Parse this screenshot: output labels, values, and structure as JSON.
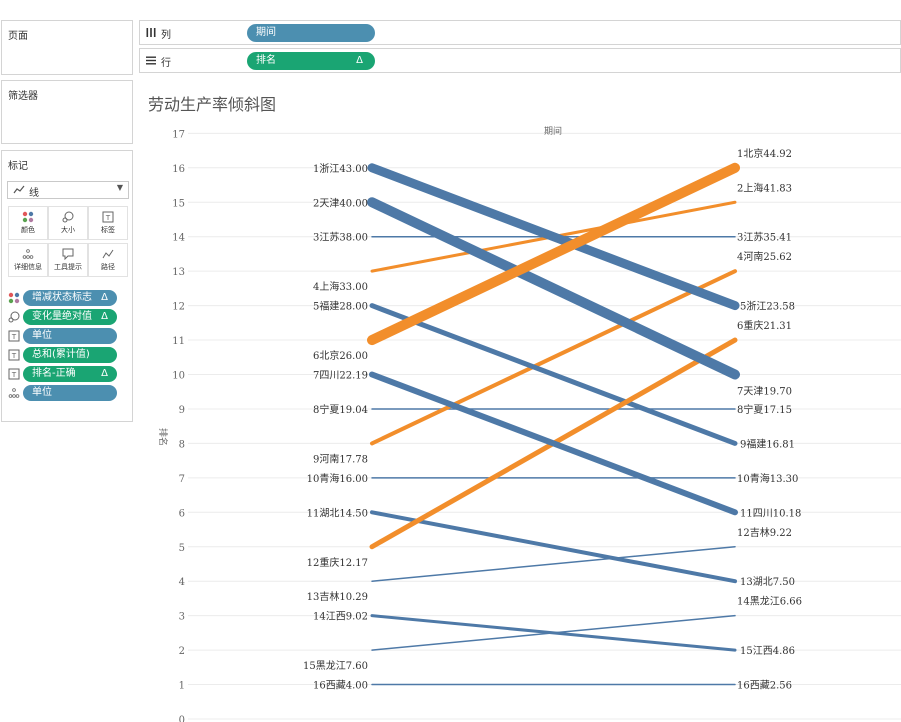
{
  "left_panel": {
    "pages_title": "页面",
    "filters_title": "筛选器",
    "marks_title": "标记",
    "mark_type": "线",
    "mark_buttons": [
      {
        "label": "颜色",
        "icon": "color-icon"
      },
      {
        "label": "大小",
        "icon": "size-icon"
      },
      {
        "label": "标签",
        "icon": "label-icon"
      },
      {
        "label": "详细信息",
        "icon": "detail-icon"
      },
      {
        "label": "工具提示",
        "icon": "tooltip-icon"
      },
      {
        "label": "路径",
        "icon": "path-icon"
      }
    ],
    "mark_pills": [
      {
        "label": "增减状态标志",
        "delta": "Δ",
        "color": "blue",
        "icon": "color-icon"
      },
      {
        "label": "变化量绝对值",
        "delta": "Δ",
        "color": "green",
        "icon": "size-icon"
      },
      {
        "label": "单位",
        "delta": "",
        "color": "blue",
        "icon": "label-icon"
      },
      {
        "label": "总和(累计值)",
        "delta": "",
        "color": "green",
        "icon": "label-icon"
      },
      {
        "label": "排名-正确",
        "delta": "Δ",
        "color": "green",
        "icon": "label-icon"
      },
      {
        "label": "单位",
        "delta": "",
        "color": "blue",
        "icon": "detail-icon"
      }
    ]
  },
  "shelves": {
    "columns_label": "列",
    "columns_pill": "期间",
    "rows_label": "行",
    "rows_pill": "排名",
    "rows_pill_delta": "Δ"
  },
  "chart_data": {
    "type": "line",
    "title": "劳动生产率倾斜图",
    "xlabel": "期间",
    "ylabel": "排名",
    "ylim": [
      0,
      17
    ],
    "yticks": [
      "0",
      "1",
      "2",
      "3",
      "4",
      "5",
      "6",
      "7",
      "8",
      "9",
      "10",
      "11",
      "12",
      "13",
      "14",
      "15",
      "16",
      "17"
    ],
    "colors": {
      "decrease": "#4e79a7",
      "increase": "#f28e2b",
      "neutral": "#4e79a7",
      "grid": "#ececec"
    },
    "series": [
      {
        "name": "浙江",
        "values": [
          16,
          12
        ],
        "left_label": "1浙江43.00",
        "right_label": "5浙江23.58",
        "width": 9,
        "status": "decrease"
      },
      {
        "name": "天津",
        "values": [
          15,
          10
        ],
        "left_label": "2天津40.00",
        "right_label": "7天津19.70",
        "width": 10,
        "status": "decrease"
      },
      {
        "name": "江苏",
        "values": [
          14,
          14
        ],
        "left_label": "3江苏38.00",
        "right_label": "3江苏35.41",
        "width": 1.5,
        "status": "neutral"
      },
      {
        "name": "上海",
        "values": [
          13,
          15
        ],
        "left_label": "4上海33.00",
        "right_label": "2上海41.83",
        "width": 3,
        "status": "increase"
      },
      {
        "name": "福建",
        "values": [
          12,
          8
        ],
        "left_label": "5福建28.00",
        "right_label": "9福建16.81",
        "width": 5,
        "status": "decrease"
      },
      {
        "name": "北京",
        "values": [
          11,
          16
        ],
        "left_label": "6北京26.00",
        "right_label": "1北京44.92",
        "width": 10,
        "status": "increase"
      },
      {
        "name": "四川",
        "values": [
          10,
          6
        ],
        "left_label": "7四川22.19",
        "right_label": "11四川10.18",
        "width": 6,
        "status": "decrease"
      },
      {
        "name": "宁夏",
        "values": [
          9,
          9
        ],
        "left_label": "8宁夏19.04",
        "right_label": "8宁夏17.15",
        "width": 1.5,
        "status": "neutral"
      },
      {
        "name": "河南",
        "values": [
          8,
          13
        ],
        "left_label": "9河南17.78",
        "right_label": "4河南25.62",
        "width": 4,
        "status": "increase"
      },
      {
        "name": "青海",
        "values": [
          7,
          7
        ],
        "left_label": "10青海16.00",
        "right_label": "10青海13.30",
        "width": 1.5,
        "status": "neutral"
      },
      {
        "name": "湖北",
        "values": [
          6,
          4
        ],
        "left_label": "11湖北14.50",
        "right_label": "13湖北7.50",
        "width": 4,
        "status": "decrease"
      },
      {
        "name": "重庆",
        "values": [
          5,
          11
        ],
        "left_label": "12重庆12.17",
        "right_label": "6重庆21.31",
        "width": 5,
        "status": "increase"
      },
      {
        "name": "吉林",
        "values": [
          4,
          5
        ],
        "left_label": "13吉林10.29",
        "right_label": "12吉林9.22",
        "width": 1.5,
        "status": "decrease"
      },
      {
        "name": "江西",
        "values": [
          3,
          2
        ],
        "left_label": "14江西9.02",
        "right_label": "15江西4.86",
        "width": 3,
        "status": "decrease"
      },
      {
        "name": "黑龙江",
        "values": [
          2,
          3
        ],
        "left_label": "15黑龙江7.60",
        "right_label": "14黑龙江6.66",
        "width": 1.5,
        "status": "decrease"
      },
      {
        "name": "西藏",
        "values": [
          1,
          1
        ],
        "left_label": "16西藏4.00",
        "right_label": "16西藏2.56",
        "width": 1.5,
        "status": "neutral"
      }
    ]
  }
}
